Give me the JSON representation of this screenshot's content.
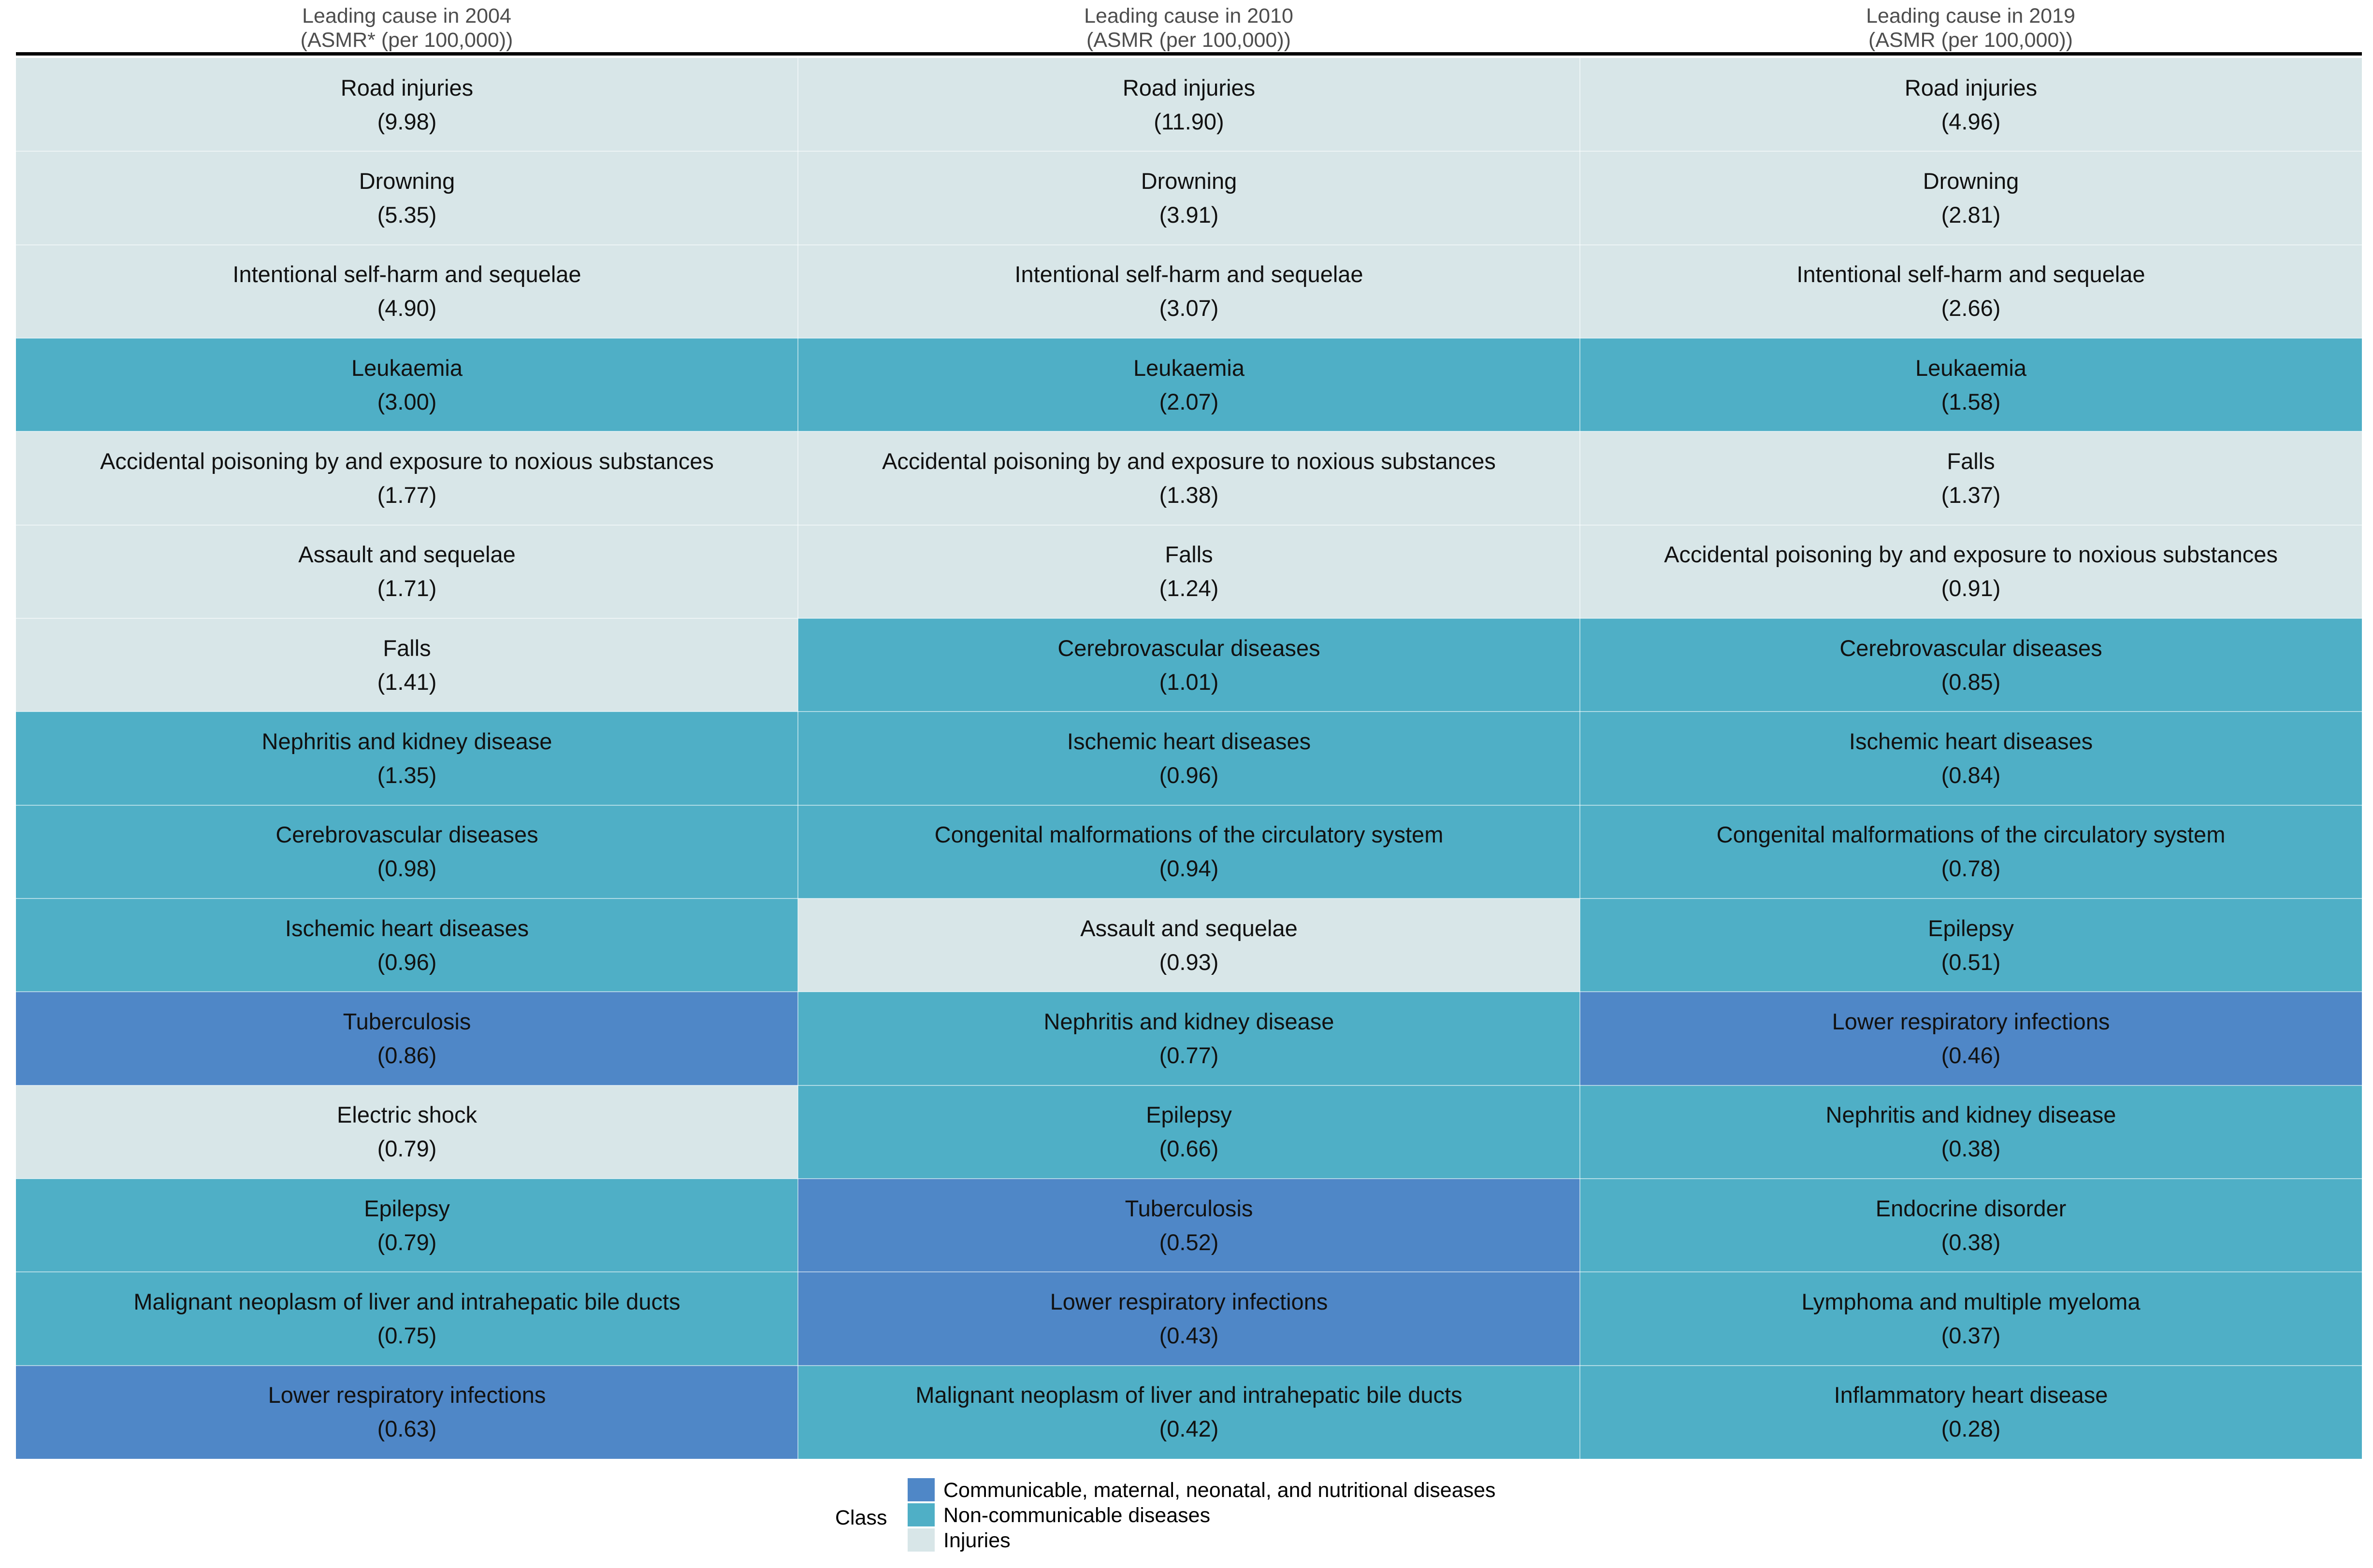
{
  "colors": {
    "communicable": "#4f87c7",
    "noncommunicable": "#4fafc6",
    "injuries": "#d8e6e8"
  },
  "chart_data": {
    "type": "table",
    "columns": [
      {
        "title": "Leading cause in 2004",
        "subtitle": "(ASMR* (per 100,000))"
      },
      {
        "title": "Leading cause in 2010",
        "subtitle": "(ASMR (per 100,000))"
      },
      {
        "title": "Leading cause in 2019",
        "subtitle": "(ASMR (per 100,000))"
      }
    ],
    "cells": [
      [
        {
          "name": "Road injuries",
          "value": "(9.98)",
          "class": "injuries"
        },
        {
          "name": "Drowning",
          "value": "(5.35)",
          "class": "injuries"
        },
        {
          "name": "Intentional self-harm and sequelae",
          "value": "(4.90)",
          "class": "injuries"
        },
        {
          "name": "Leukaemia",
          "value": "(3.00)",
          "class": "noncommunicable"
        },
        {
          "name": "Accidental poisoning by and exposure to noxious substances",
          "value": "(1.77)",
          "class": "injuries"
        },
        {
          "name": "Assault and sequelae",
          "value": "(1.71)",
          "class": "injuries"
        },
        {
          "name": "Falls",
          "value": "(1.41)",
          "class": "injuries"
        },
        {
          "name": "Nephritis and kidney disease",
          "value": "(1.35)",
          "class": "noncommunicable"
        },
        {
          "name": "Cerebrovascular diseases",
          "value": "(0.98)",
          "class": "noncommunicable"
        },
        {
          "name": "Ischemic heart diseases",
          "value": "(0.96)",
          "class": "noncommunicable"
        },
        {
          "name": "Tuberculosis",
          "value": "(0.86)",
          "class": "communicable"
        },
        {
          "name": "Electric shock",
          "value": "(0.79)",
          "class": "injuries"
        },
        {
          "name": "Epilepsy",
          "value": "(0.79)",
          "class": "noncommunicable"
        },
        {
          "name": "Malignant neoplasm of liver and intrahepatic bile ducts",
          "value": "(0.75)",
          "class": "noncommunicable"
        },
        {
          "name": "Lower respiratory infections",
          "value": "(0.63)",
          "class": "communicable"
        }
      ],
      [
        {
          "name": "Road injuries",
          "value": "(11.90)",
          "class": "injuries"
        },
        {
          "name": "Drowning",
          "value": "(3.91)",
          "class": "injuries"
        },
        {
          "name": "Intentional self-harm and sequelae",
          "value": "(3.07)",
          "class": "injuries"
        },
        {
          "name": "Leukaemia",
          "value": "(2.07)",
          "class": "noncommunicable"
        },
        {
          "name": "Accidental poisoning by and exposure to noxious substances",
          "value": "(1.38)",
          "class": "injuries"
        },
        {
          "name": "Falls",
          "value": "(1.24)",
          "class": "injuries"
        },
        {
          "name": "Cerebrovascular diseases",
          "value": "(1.01)",
          "class": "noncommunicable"
        },
        {
          "name": "Ischemic heart diseases",
          "value": "(0.96)",
          "class": "noncommunicable"
        },
        {
          "name": "Congenital malformations of the circulatory system",
          "value": "(0.94)",
          "class": "noncommunicable"
        },
        {
          "name": "Assault and sequelae",
          "value": "(0.93)",
          "class": "injuries"
        },
        {
          "name": "Nephritis and kidney disease",
          "value": "(0.77)",
          "class": "noncommunicable"
        },
        {
          "name": "Epilepsy",
          "value": "(0.66)",
          "class": "noncommunicable"
        },
        {
          "name": "Tuberculosis",
          "value": "(0.52)",
          "class": "communicable"
        },
        {
          "name": "Lower respiratory infections",
          "value": "(0.43)",
          "class": "communicable"
        },
        {
          "name": "Malignant neoplasm of liver and intrahepatic bile ducts",
          "value": "(0.42)",
          "class": "noncommunicable"
        }
      ],
      [
        {
          "name": "Road injuries",
          "value": "(4.96)",
          "class": "injuries"
        },
        {
          "name": "Drowning",
          "value": "(2.81)",
          "class": "injuries"
        },
        {
          "name": "Intentional self-harm and sequelae",
          "value": "(2.66)",
          "class": "injuries"
        },
        {
          "name": "Leukaemia",
          "value": "(1.58)",
          "class": "noncommunicable"
        },
        {
          "name": "Falls",
          "value": "(1.37)",
          "class": "injuries"
        },
        {
          "name": "Accidental poisoning by and exposure to noxious substances",
          "value": "(0.91)",
          "class": "injuries"
        },
        {
          "name": "Cerebrovascular diseases",
          "value": "(0.85)",
          "class": "noncommunicable"
        },
        {
          "name": "Ischemic heart diseases",
          "value": "(0.84)",
          "class": "noncommunicable"
        },
        {
          "name": "Congenital malformations of the circulatory system",
          "value": "(0.78)",
          "class": "noncommunicable"
        },
        {
          "name": "Epilepsy",
          "value": "(0.51)",
          "class": "noncommunicable"
        },
        {
          "name": "Lower respiratory infections",
          "value": "(0.46)",
          "class": "communicable"
        },
        {
          "name": "Nephritis and kidney disease",
          "value": "(0.38)",
          "class": "noncommunicable"
        },
        {
          "name": "Endocrine disorder",
          "value": "(0.38)",
          "class": "noncommunicable"
        },
        {
          "name": "Lymphoma and multiple myeloma",
          "value": "(0.37)",
          "class": "noncommunicable"
        },
        {
          "name": "Inflammatory heart disease",
          "value": "(0.28)",
          "class": "noncommunicable"
        }
      ]
    ],
    "legend": {
      "title": "Class",
      "entries": [
        {
          "key": "communicable",
          "label": "Communicable, maternal, neonatal, and nutritional diseases"
        },
        {
          "key": "noncommunicable",
          "label": "Non-communicable diseases"
        },
        {
          "key": "injuries",
          "label": "Injuries"
        }
      ]
    }
  }
}
